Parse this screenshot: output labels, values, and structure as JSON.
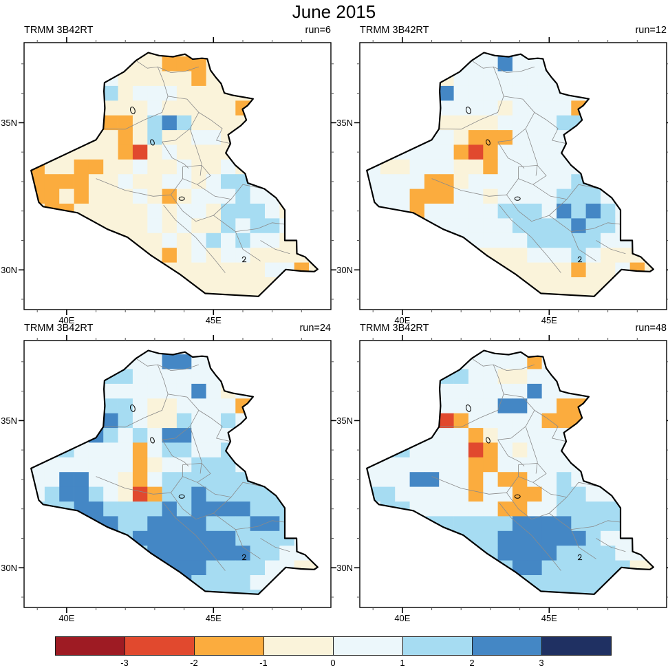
{
  "chart_data": {
    "type": "heatmap",
    "title": "June 2015",
    "dataset_label": "TRMM 3B42RT",
    "panels": [
      {
        "label": "TRMM 3B42RT",
        "run": "run=6",
        "grid": [
          "333333333333333333333",
          "333333333322233333333",
          "333334433333233333333",
          "333335534443333333333",
          "333333333433333233333",
          "333333223565333333333",
          "333333323533443333333",
          "333333321343333333333",
          "223322334334334334333",
          "322223343344345543333",
          "322323334323444544333",
          "332233333434435554333",
          "333333333434335455433",
          "333333333343454544333",
          "333333333323434433333",
          "333333333333333334423",
          "333333333333333333333",
          "333333333333333333333"
        ]
      },
      {
        "label": "TRMM 3B42RT",
        "run": "run=12",
        "grid": [
          "444444444444444444444",
          "444444444464444444444",
          "444443344444443444444",
          "444444644444444444444",
          "444444444434444244444",
          "444443333344445544444",
          "444444432224444544444",
          "444444421244444444444",
          "443344433244444454444",
          "444442234444444554444",
          "444422244344445554444",
          "444424444455546565444",
          "444444444445555655444",
          "444444444444555554444",
          "333333333333444543333",
          "333333333333333233423",
          "333333333333333333333",
          "333333333333333333333"
        ]
      },
      {
        "label": "TRMM 3B42RT",
        "run": "run=24",
        "grid": [
          "445554444444444444444",
          "444555544466444444444",
          "444445554444444433444",
          "444444444444643444444",
          "444445554334444244444",
          "444446654335445444444",
          "444446545466444454444",
          "445544442455445544444",
          "444444442344555444444",
          "444664432455555555444",
          "445665431255655555444",
          "555566555565666655544",
          "555556655666655566554",
          "555555656666666555544",
          "555555555666666655444",
          "555555555566655554433",
          "555555555556555544333",
          "555555555555555554333"
        ]
      },
      {
        "label": "TRMM 3B42RT",
        "run": "run=48",
        "grid": [
          "444445544444444444444",
          "444455444444244444444",
          "444444554433444444444",
          "444444444444644444444",
          "444444444466442244444",
          "444444124444422224444",
          "444444442344444244444",
          "445544441243444444444",
          "444444442244444454444",
          "444466442422445445544",
          "455444442442245544544",
          "445544444422445555544",
          "444445555556666555544",
          "555555555566666654444",
          "555555555566665555443",
          "555555555556655555533",
          "555555555555555555333",
          "555555555555555555333"
        ]
      }
    ],
    "grid_encoding": {
      "description": "Each grid row is a west-to-east string of color-class digits on a 0.5-degree mesh clipped to the Iraq border; rows run north (37.5N) to south (29.0N), columns 38.5E to 48.5E.",
      "lon_start": 38.5,
      "lat_start": 37.5,
      "step": 0.5,
      "cols": 21,
      "rows": 18,
      "classes": {
        "0": "< -3",
        "1": "-3 to -2",
        "2": "-2 to -1",
        "3": "-1 to 0",
        "4": "0 to 1",
        "5": "1 to 2",
        "6": "2 to 3",
        "7": "> 3"
      }
    },
    "axes": {
      "lon_ticks": [
        {
          "label": "40E",
          "deg": 40
        },
        {
          "label": "45E",
          "deg": 45
        }
      ],
      "lat_ticks": [
        {
          "label": "35N",
          "deg": 35
        },
        {
          "label": "30N",
          "deg": 30
        }
      ],
      "lon_range": [
        38.55,
        49.0
      ],
      "lat_range": [
        28.65,
        37.72
      ],
      "minor_tick_interval_deg": 1,
      "grid_lines": "off",
      "region": "Iraq governorate map outline"
    },
    "colorbar": {
      "position": "bottom",
      "boundary_labels": [
        "-3",
        "-2",
        "-1",
        "0",
        "1",
        "2",
        "3"
      ],
      "colors": [
        "#9e1b23",
        "#e1492e",
        "#fbac3e",
        "#faf3da",
        "#ecf7fb",
        "#a6dcf2",
        "#4487c5",
        "#1f3062"
      ]
    }
  }
}
